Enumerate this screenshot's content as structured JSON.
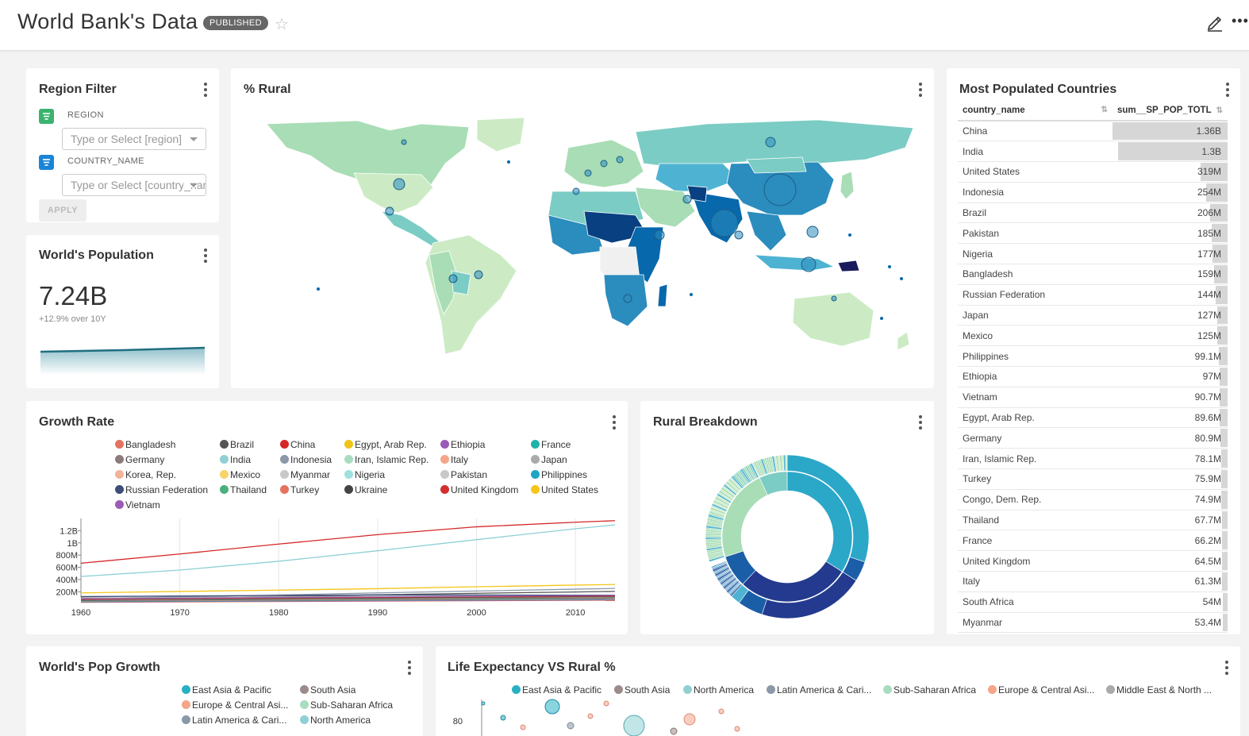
{
  "header": {
    "title": "World Bank's Data",
    "status_badge": "PUBLISHED",
    "icons": [
      "star-icon",
      "pencil-icon",
      "more-horizontal-icon"
    ]
  },
  "region_filter": {
    "title": "Region Filter",
    "fields": [
      {
        "label": "REGION",
        "placeholder": "Type or Select [region]",
        "icon_color": "#3bb36f"
      },
      {
        "label": "COUNTRY_NAME",
        "placeholder": "Type or Select [country_name]",
        "icon_color": "#1a85d6"
      }
    ],
    "apply_label": "APPLY"
  },
  "world_population": {
    "title": "World's Population",
    "value": "7.24B",
    "delta": "+12.9% over 10Y"
  },
  "rural_map": {
    "title": "% Rural",
    "colors": [
      "#ccebc5",
      "#a8ddb5",
      "#7bccc4",
      "#4eb3d3",
      "#2b8cbe",
      "#0868ac",
      "#084081",
      "#1a1a5e"
    ]
  },
  "growth_rate": {
    "title": "Growth Rate",
    "legend": [
      {
        "name": "Bangladesh",
        "color": "#e3735e"
      },
      {
        "name": "Brazil",
        "color": "#555555"
      },
      {
        "name": "China",
        "color": "#d62728"
      },
      {
        "name": "Egypt, Arab Rep.",
        "color": "#f0c419"
      },
      {
        "name": "Ethiopia",
        "color": "#9b59b6"
      },
      {
        "name": "France",
        "color": "#20b2aa"
      },
      {
        "name": "Germany",
        "color": "#8c7b7b"
      },
      {
        "name": "India",
        "color": "#8fd0d4"
      },
      {
        "name": "Indonesia",
        "color": "#8a98a8"
      },
      {
        "name": "Iran, Islamic Rep.",
        "color": "#a8dcc0"
      },
      {
        "name": "Italy",
        "color": "#f4a58a"
      },
      {
        "name": "Japan",
        "color": "#aaaaaa"
      },
      {
        "name": "Korea, Rep.",
        "color": "#f2b49a"
      },
      {
        "name": "Mexico",
        "color": "#f7d36b"
      },
      {
        "name": "Myanmar",
        "color": "#c8c8c8"
      },
      {
        "name": "Nigeria",
        "color": "#9ee0dc"
      },
      {
        "name": "Pakistan",
        "color": "#c8c8c8"
      },
      {
        "name": "Philippines",
        "color": "#1fa5c4"
      },
      {
        "name": "Russian Federation",
        "color": "#3d4d7a"
      },
      {
        "name": "Thailand",
        "color": "#4caf7d"
      },
      {
        "name": "Turkey",
        "color": "#e57361"
      },
      {
        "name": "Ukraine",
        "color": "#444444"
      },
      {
        "name": "United Kingdom",
        "color": "#d32f2f"
      },
      {
        "name": "United States",
        "color": "#f5c518"
      },
      {
        "name": "Vietnam",
        "color": "#9c5bb6"
      }
    ]
  },
  "chart_data": [
    {
      "type": "line",
      "title": "Growth Rate",
      "xlabel": "",
      "ylabel": "",
      "x_ticks": [
        "1960",
        "1970",
        "1980",
        "1990",
        "2000",
        "2010"
      ],
      "y_ticks": [
        "200M",
        "400M",
        "600M",
        "800M",
        "1B",
        "1.2B"
      ],
      "xlim": [
        1960,
        2014
      ],
      "ylim": [
        100000000,
        1400000000
      ],
      "x": [
        1960,
        1970,
        1980,
        1990,
        2000,
        2010,
        2014
      ],
      "series": [
        {
          "name": "China",
          "values": [
            667000000,
            818000000,
            981000000,
            1135000000,
            1263000000,
            1338000000,
            1364000000
          ]
        },
        {
          "name": "India",
          "values": [
            450000000,
            555000000,
            699000000,
            871000000,
            1053000000,
            1231000000,
            1295000000
          ]
        },
        {
          "name": "United States",
          "values": [
            181000000,
            205000000,
            227000000,
            250000000,
            282000000,
            309000000,
            319000000
          ]
        },
        {
          "name": "Indonesia",
          "values": [
            88000000,
            115000000,
            147000000,
            181000000,
            212000000,
            242000000,
            254000000
          ]
        },
        {
          "name": "Brazil",
          "values": [
            72000000,
            95000000,
            121000000,
            150000000,
            175000000,
            196000000,
            206000000
          ]
        },
        {
          "name": "Russian Federation",
          "values": [
            120000000,
            130000000,
            139000000,
            148000000,
            146000000,
            143000000,
            144000000
          ]
        },
        {
          "name": "Japan",
          "values": [
            92000000,
            104000000,
            117000000,
            124000000,
            127000000,
            128000000,
            127000000
          ]
        }
      ]
    },
    {
      "type": "table",
      "title": "Most Populated Countries",
      "columns": [
        "country_name",
        "sum__SP_POP_TOTL"
      ],
      "rows": [
        [
          "China",
          "1.36B"
        ],
        [
          "India",
          "1.3B"
        ],
        [
          "United States",
          "319M"
        ],
        [
          "Indonesia",
          "254M"
        ],
        [
          "Brazil",
          "206M"
        ],
        [
          "Pakistan",
          "185M"
        ],
        [
          "Nigeria",
          "177M"
        ],
        [
          "Bangladesh",
          "159M"
        ],
        [
          "Russian Federation",
          "144M"
        ],
        [
          "Japan",
          "127M"
        ],
        [
          "Mexico",
          "125M"
        ],
        [
          "Philippines",
          "99.1M"
        ],
        [
          "Ethiopia",
          "97M"
        ],
        [
          "Vietnam",
          "90.7M"
        ],
        [
          "Egypt, Arab Rep.",
          "89.6M"
        ],
        [
          "Germany",
          "80.9M"
        ],
        [
          "Iran, Islamic Rep.",
          "78.1M"
        ],
        [
          "Turkey",
          "75.9M"
        ],
        [
          "Congo, Dem. Rep.",
          "74.9M"
        ],
        [
          "Thailand",
          "67.7M"
        ],
        [
          "France",
          "66.2M"
        ],
        [
          "United Kingdom",
          "64.5M"
        ],
        [
          "Italy",
          "61.3M"
        ],
        [
          "South Africa",
          "54M"
        ],
        [
          "Myanmar",
          "53.4M"
        ]
      ],
      "values": [
        1364000000,
        1295000000,
        319000000,
        254000000,
        206000000,
        185000000,
        177000000,
        159000000,
        144000000,
        127000000,
        125000000,
        99100000,
        97000000,
        90700000,
        89600000,
        80900000,
        78100000,
        75900000,
        74900000,
        67700000,
        66200000,
        64500000,
        61300000,
        54000000,
        53400000
      ]
    }
  ],
  "most_populated": {
    "title": "Most Populated Countries",
    "col_country": "country_name",
    "col_value": "sum__SP_POP_TOTL"
  },
  "rural_breakdown": {
    "title": "Rural Breakdown",
    "colors": [
      "#2ba7c8",
      "#233a8f",
      "#1a5ea8",
      "#a8ddb5",
      "#7bccc4",
      "#4eb3d3"
    ]
  },
  "pop_growth": {
    "title": "World's Pop Growth",
    "legend": [
      {
        "name": "East Asia & Pacific",
        "color": "#2ab0c5"
      },
      {
        "name": "South Asia",
        "color": "#9c8b8b"
      },
      {
        "name": "Europe & Central Asi...",
        "color": "#f4a58a"
      },
      {
        "name": "Sub-Saharan Africa",
        "color": "#a8dcc0"
      },
      {
        "name": "Latin America & Cari...",
        "color": "#8a98a8"
      },
      {
        "name": "North America",
        "color": "#8fd0d4"
      }
    ]
  },
  "life_expectancy": {
    "title": "Life Expectancy VS Rural %",
    "legend": [
      {
        "name": "East Asia & Pacific",
        "color": "#2ab0c5"
      },
      {
        "name": "South Asia",
        "color": "#9c8b8b"
      },
      {
        "name": "North America",
        "color": "#8fd0d4"
      },
      {
        "name": "Latin America & Cari...",
        "color": "#8a98a8"
      },
      {
        "name": "Sub-Saharan Africa",
        "color": "#a8dcc0"
      },
      {
        "name": "Europe & Central Asi...",
        "color": "#f4a58a"
      },
      {
        "name": "Middle East & North ...",
        "color": "#aaaaaa"
      }
    ],
    "y_tick": "80"
  }
}
